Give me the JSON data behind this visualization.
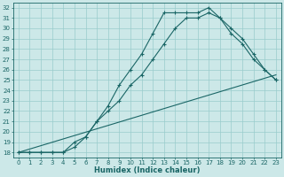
{
  "xlabel": "Humidex (Indice chaleur)",
  "xlim": [
    -0.5,
    23.5
  ],
  "ylim": [
    17.5,
    32.5
  ],
  "yticks": [
    18,
    19,
    20,
    21,
    22,
    23,
    24,
    25,
    26,
    27,
    28,
    29,
    30,
    31,
    32
  ],
  "xticks": [
    0,
    1,
    2,
    3,
    4,
    5,
    6,
    7,
    8,
    9,
    10,
    11,
    12,
    13,
    14,
    15,
    16,
    17,
    18,
    19,
    20,
    21,
    22,
    23
  ],
  "bg_color": "#cce8e8",
  "grid_color": "#99cccc",
  "line_color": "#1a6666",
  "line1_x": [
    0,
    1,
    2,
    3,
    4,
    5,
    6,
    7,
    8,
    9,
    10,
    11,
    12,
    13,
    14,
    15,
    16,
    17,
    18,
    19,
    20,
    21,
    22,
    23
  ],
  "line1_y": [
    18,
    18,
    18,
    18,
    18,
    19,
    19.5,
    21,
    22.5,
    24.5,
    26,
    27.5,
    29.5,
    31.5,
    31.5,
    31.5,
    31.5,
    32,
    31,
    29.5,
    28.5,
    27,
    26,
    25
  ],
  "line2_x": [
    0,
    1,
    2,
    3,
    4,
    5,
    6,
    7,
    8,
    9,
    10,
    11,
    12,
    13,
    14,
    15,
    16,
    17,
    18,
    19,
    20,
    21,
    22,
    23
  ],
  "line2_y": [
    18,
    18,
    18,
    18,
    18,
    18.5,
    19.5,
    21,
    22,
    23,
    24.5,
    25.5,
    27,
    28.5,
    30,
    31,
    31,
    31.5,
    31,
    30,
    29,
    27.5,
    26,
    25
  ],
  "line3_x": [
    0,
    23
  ],
  "line3_y": [
    18,
    25.5
  ]
}
